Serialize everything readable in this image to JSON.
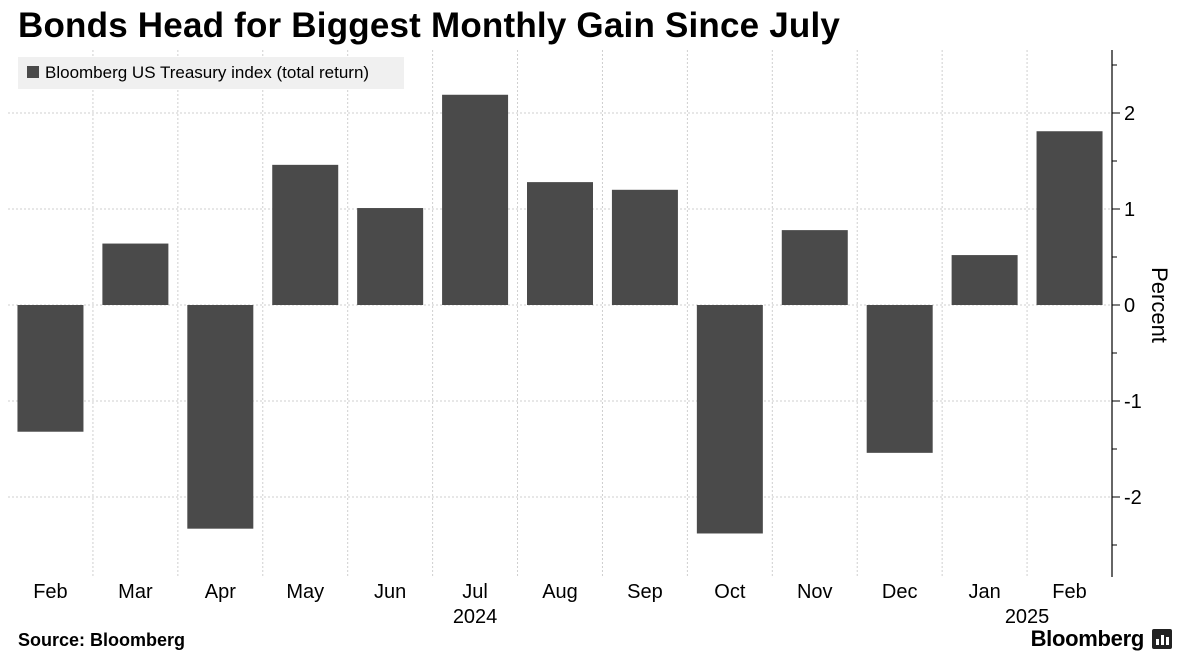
{
  "title": "Bonds Head for Biggest Monthly Gain Since July",
  "source": "Source: Bloomberg",
  "brand": "Bloomberg",
  "colors": {
    "bar": "#4a4a4a",
    "grid": "#cfcfcf",
    "legend_bg": "#f0f0f0"
  },
  "chart_data": {
    "type": "bar",
    "series": [
      {
        "name": "Bloomberg US Treasury index (total return)",
        "values": [
          -1.32,
          0.64,
          -2.33,
          1.46,
          1.01,
          2.19,
          1.28,
          1.2,
          -2.38,
          0.78,
          -1.54,
          0.52,
          1.81
        ]
      }
    ],
    "categories": [
      "Feb",
      "Mar",
      "Apr",
      "May",
      "Jun",
      "Jul",
      "Aug",
      "Sep",
      "Oct",
      "Nov",
      "Dec",
      "Jan",
      "Feb"
    ],
    "year_labels": [
      {
        "category_index": 5,
        "label": "2024"
      },
      {
        "category_index": 11.5,
        "label": "2025"
      }
    ],
    "ylabel": "Percent",
    "yticks": [
      -2,
      -1,
      0,
      1,
      2
    ],
    "ylim": [
      -2.85,
      2.6
    ],
    "grid": true,
    "legend_position": "top-left"
  }
}
